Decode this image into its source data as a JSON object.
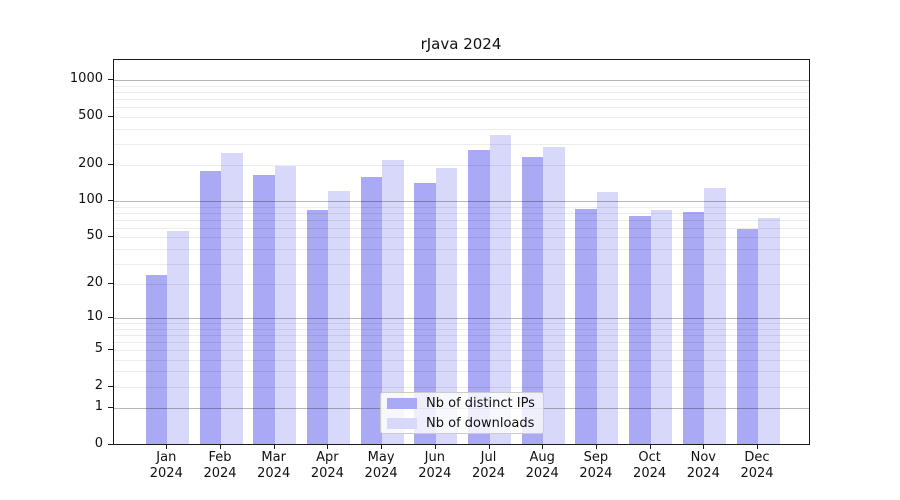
{
  "title": "rJava 2024",
  "legend": {
    "items": [
      {
        "label": "Nb of distinct IPs",
        "color": "#a9a9f5"
      },
      {
        "label": "Nb of downloads",
        "color": "#d8d8fa"
      }
    ]
  },
  "chart_data": {
    "type": "bar",
    "title": "rJava 2024",
    "categories": [
      "Jan",
      "Feb",
      "Mar",
      "Apr",
      "May",
      "Jun",
      "Jul",
      "Aug",
      "Sep",
      "Oct",
      "Nov",
      "Dec"
    ],
    "category_year": "2024",
    "series": [
      {
        "name": "Nb of distinct IPs",
        "color": "#a9a9f5",
        "values": [
          24,
          179,
          164,
          85,
          160,
          142,
          265,
          233,
          86,
          75,
          82,
          59
        ]
      },
      {
        "name": "Nb of downloads",
        "color": "#d8d8fa",
        "values": [
          56,
          251,
          198,
          122,
          219,
          190,
          354,
          282,
          119,
          84,
          130,
          73
        ]
      }
    ],
    "xlabel": "",
    "ylabel": "",
    "yscale": "log1p",
    "ylim": [
      0,
      1480
    ],
    "yticks": [
      0,
      1,
      2,
      5,
      10,
      20,
      50,
      100,
      200,
      500,
      1000
    ],
    "grid": {
      "major": [
        1,
        10,
        100,
        1000
      ],
      "minor": [
        2,
        3,
        4,
        5,
        6,
        7,
        8,
        9,
        20,
        30,
        40,
        50,
        60,
        70,
        80,
        90,
        200,
        300,
        400,
        500,
        600,
        700,
        800,
        900
      ]
    },
    "legend_position": "lower center"
  }
}
